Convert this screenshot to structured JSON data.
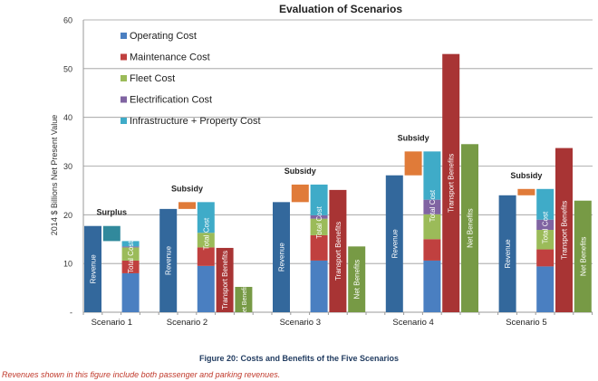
{
  "chart_data": {
    "type": "bar",
    "title": "Evaluation of Scenarios",
    "ylabel": "2014 $ Billions Net Present Value",
    "xlabel": "",
    "ylim": [
      0,
      60
    ],
    "yticks": [
      0,
      10,
      20,
      30,
      40,
      50,
      60
    ],
    "ytick_labels": [
      "-",
      "10",
      "20",
      "30",
      "40",
      "50",
      "60"
    ],
    "grid": true,
    "legend_placement": "top-left",
    "legend": [
      {
        "name": "Operating Cost",
        "color": "#4a7fc1"
      },
      {
        "name": "Maintenance Cost",
        "color": "#c0403f"
      },
      {
        "name": "Fleet Cost",
        "color": "#9bbb59"
      },
      {
        "name": "Electrification Cost",
        "color": "#8064a2"
      },
      {
        "name": "Infrastructure + Property Cost",
        "color": "#3fabc8"
      }
    ],
    "colors": {
      "revenue": "#33689c",
      "surplus": "#31899c",
      "subsidy": "#e07b39",
      "transport_benefits": "#a83434",
      "net_benefits": "#779a45"
    },
    "bar_labels": {
      "revenue": "Revenue",
      "total_cost": "Total Cost",
      "transport_benefits": "Transport Benefits",
      "net_benefits": "Net Benefits",
      "net_benefits_short": "Net Benefits"
    },
    "categories": [
      "Scenario 1",
      "Scenario 2",
      "Scenario 3",
      "Scenario 4",
      "Scenario 5"
    ],
    "scenarios": [
      {
        "name": "Scenario 1",
        "balance_label": "Surplus",
        "revenue": 17.7,
        "balance": "surplus",
        "cost_cumulative": [
          8.0,
          10.6,
          13.3,
          13.5,
          14.6
        ],
        "transport_benefits": null,
        "net_benefits": null
      },
      {
        "name": "Scenario 2",
        "balance_label": "Subsidy",
        "revenue": 21.2,
        "balance": "subsidy",
        "cost_cumulative": [
          9.5,
          13.3,
          16.3,
          16.3,
          22.6
        ],
        "transport_benefits": 13.2,
        "net_benefits": 5.2
      },
      {
        "name": "Scenario 3",
        "balance_label": "Subsidy",
        "revenue": 22.6,
        "balance": "subsidy",
        "cost_cumulative": [
          10.6,
          15.8,
          19.2,
          19.9,
          26.2
        ],
        "transport_benefits": 25.1,
        "net_benefits": 13.5
      },
      {
        "name": "Scenario 4",
        "balance_label": "Subsidy",
        "revenue": 28.1,
        "balance": "subsidy",
        "cost_cumulative": [
          10.6,
          15.0,
          20.1,
          23.1,
          33.0
        ],
        "transport_benefits": 53.0,
        "net_benefits": 34.5
      },
      {
        "name": "Scenario 5",
        "balance_label": "Subsidy",
        "revenue": 24.0,
        "balance": "subsidy",
        "cost_cumulative": [
          9.4,
          12.9,
          16.9,
          19.0,
          25.3
        ],
        "transport_benefits": 33.7,
        "net_benefits": 22.9
      }
    ]
  },
  "caption": "Figure 20: Costs and Benefits of the Five Scenarios",
  "note": "Revenues shown in this figure include both passenger and parking revenues."
}
